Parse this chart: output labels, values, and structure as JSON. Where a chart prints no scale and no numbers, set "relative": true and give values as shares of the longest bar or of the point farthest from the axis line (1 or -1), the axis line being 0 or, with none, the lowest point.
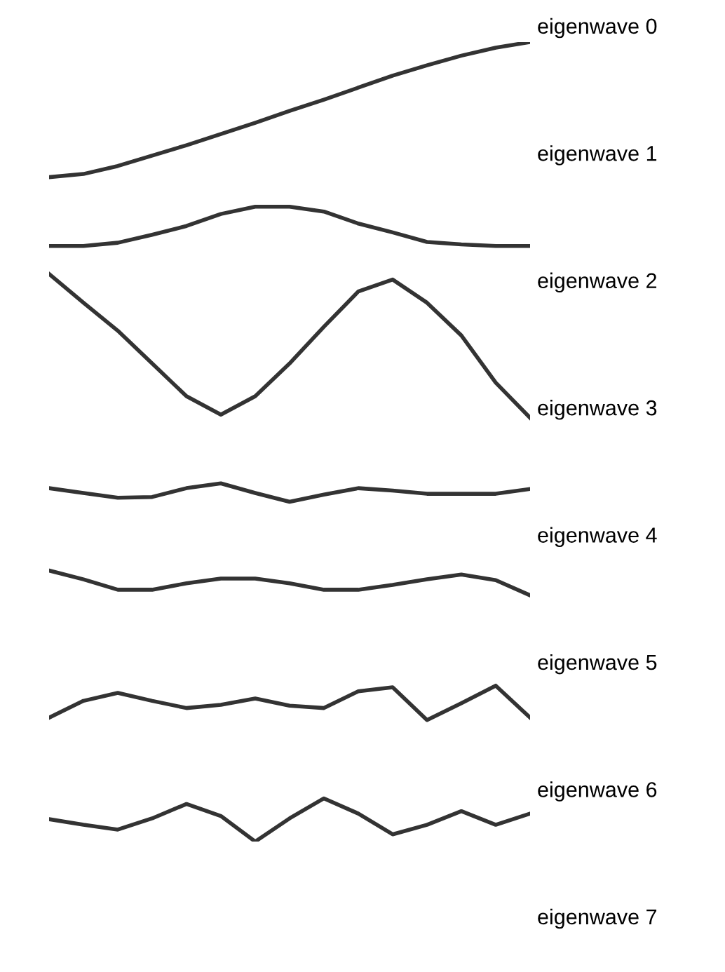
{
  "chart_data": {
    "type": "line",
    "relative": true,
    "marker": "none",
    "line_style": "solid",
    "categories": [
      null,
      null,
      null,
      null,
      null,
      null,
      null,
      null,
      null,
      null,
      null,
      null,
      null,
      null,
      null
    ],
    "series": [
      {
        "color": "#333333",
        "values": [
          0.831,
          0.835,
          0.845,
          0.858,
          0.871,
          0.885,
          0.899,
          0.914,
          0.928,
          0.943,
          0.958,
          0.971,
          0.983,
          0.993,
          1.0
        ]
      },
      {
        "color": "#333333",
        "values": [
          0.745,
          0.745,
          0.749,
          0.759,
          0.77,
          0.785,
          0.794,
          0.794,
          0.788,
          0.773,
          0.762,
          0.75,
          0.747,
          0.745,
          0.745
        ]
      },
      {
        "color": "#333333",
        "values": [
          0.71,
          0.674,
          0.639,
          0.598,
          0.557,
          0.534,
          0.557,
          0.598,
          0.644,
          0.688,
          0.703,
          0.674,
          0.633,
          0.574,
          0.53
        ]
      },
      {
        "color": "#333333",
        "values": [
          0.442,
          0.436,
          0.43,
          0.431,
          0.442,
          0.448,
          0.436,
          0.425,
          0.434,
          0.442,
          0.439,
          0.435,
          0.435,
          0.435,
          0.441
        ]
      },
      {
        "color": "#333333",
        "values": [
          0.339,
          0.328,
          0.315,
          0.315,
          0.323,
          0.329,
          0.329,
          0.323,
          0.315,
          0.315,
          0.321,
          0.328,
          0.334,
          0.327,
          0.308
        ]
      },
      {
        "color": "#333333",
        "values": [
          0.155,
          0.176,
          0.186,
          0.176,
          0.167,
          0.171,
          0.179,
          0.17,
          0.167,
          0.188,
          0.193,
          0.152,
          0.173,
          0.195,
          0.155
        ]
      },
      {
        "color": "#333333",
        "values": [
          0.028,
          0.021,
          0.015,
          0.029,
          0.047,
          0.032,
          0.0,
          0.029,
          0.054,
          0.035,
          0.009,
          0.021,
          0.038,
          0.021,
          0.035
        ]
      }
    ],
    "annotations": [
      "eigenwave 0",
      "eigenwave 1",
      "eigenwave 2",
      "eigenwave 3",
      "eigenwave 4",
      "eigenwave 5",
      "eigenwave 6",
      "eigenwave 7"
    ]
  }
}
